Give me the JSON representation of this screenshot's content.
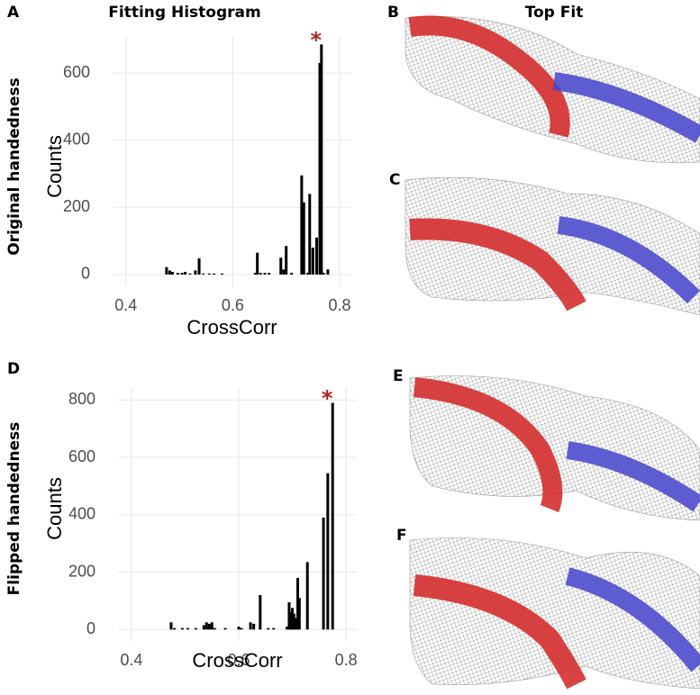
{
  "column_titles": [
    "Fitting Histogram",
    "Top Fit"
  ],
  "row_titles": [
    "Original handedness",
    "Flipped handedness"
  ],
  "panel_labels": [
    "A",
    "B",
    "C",
    "D",
    "E",
    "F"
  ],
  "chart_data": [
    {
      "type": "bar",
      "xlabel": "CrossCorr",
      "ylabel": "Counts",
      "annotation": "*",
      "annotation_color": "#b22222",
      "color": "#000000",
      "grid": true,
      "x": [
        0.476,
        0.482,
        0.487,
        0.497,
        0.505,
        0.511,
        0.52,
        0.53,
        0.537,
        0.545,
        0.556,
        0.565,
        0.58,
        0.642,
        0.646,
        0.652,
        0.66,
        0.668,
        0.69,
        0.695,
        0.7,
        0.71,
        0.729,
        0.733,
        0.74,
        0.744,
        0.75,
        0.757,
        0.763,
        0.766,
        0.77,
        0.778
      ],
      "values": [
        22,
        12,
        8,
        5,
        5,
        8,
        3,
        12,
        48,
        3,
        3,
        3,
        3,
        5,
        65,
        5,
        5,
        5,
        50,
        15,
        85,
        5,
        295,
        215,
        5,
        240,
        80,
        110,
        630,
        685,
        5,
        15
      ],
      "xlim": [
        0.375,
        0.822
      ],
      "ylim": [
        -35,
        710
      ],
      "xticks": [
        0.4,
        0.6,
        0.8
      ],
      "yticks": [
        0,
        200,
        400,
        600
      ]
    },
    {
      "type": "bar",
      "xlabel": "CrossCorr",
      "ylabel": "Counts",
      "annotation": "*",
      "annotation_color": "#b22222",
      "color": "#000000",
      "grid": true,
      "x": [
        0.474,
        0.48,
        0.495,
        0.505,
        0.52,
        0.535,
        0.54,
        0.545,
        0.55,
        0.555,
        0.575,
        0.6,
        0.605,
        0.622,
        0.628,
        0.64,
        0.655,
        0.665,
        0.69,
        0.694,
        0.697,
        0.7,
        0.703,
        0.707,
        0.71,
        0.713,
        0.728,
        0.758,
        0.766,
        0.775
      ],
      "values": [
        25,
        5,
        5,
        5,
        5,
        15,
        25,
        20,
        25,
        5,
        5,
        10,
        5,
        25,
        20,
        120,
        5,
        5,
        10,
        95,
        60,
        75,
        55,
        40,
        180,
        110,
        235,
        390,
        545,
        790
      ],
      "xlim": [
        0.375,
        0.82
      ],
      "ylim": [
        -40,
        845
      ],
      "xticks": [
        0.4,
        0.6,
        0.8
      ],
      "yticks": [
        0,
        200,
        400,
        600,
        800
      ]
    }
  ]
}
